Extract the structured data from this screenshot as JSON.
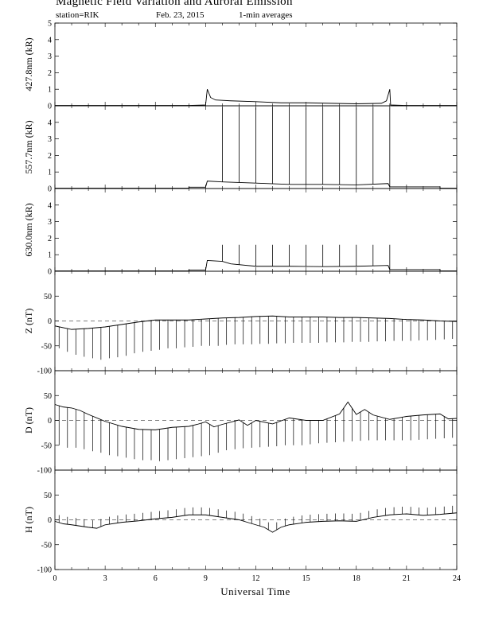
{
  "header": {
    "title": "Magnetic Field Variation and Auroral Emission",
    "station": "station=RIK",
    "date": "Feb. 23, 2015",
    "averaging": "1-min averages"
  },
  "chart_data": {
    "type": "line",
    "xlabel": "Universal Time",
    "x_ticks": [
      0,
      3,
      6,
      9,
      12,
      15,
      18,
      21,
      24
    ],
    "xlim": [
      0,
      24
    ],
    "panels": [
      {
        "id": "427",
        "ylabel": "427.8nm (kR)",
        "ylim": [
          0,
          5
        ],
        "yticks": [
          0,
          1,
          2,
          3,
          4,
          5
        ],
        "points": [
          [
            0,
            0.02
          ],
          [
            8.0,
            0.02
          ],
          [
            9.0,
            0.05
          ],
          [
            9.1,
            1.0
          ],
          [
            9.3,
            0.5
          ],
          [
            9.6,
            0.35
          ],
          [
            10.5,
            0.3
          ],
          [
            12,
            0.25
          ],
          [
            13.5,
            0.18
          ],
          [
            15,
            0.18
          ],
          [
            16.5,
            0.15
          ],
          [
            18,
            0.12
          ],
          [
            19.5,
            0.15
          ],
          [
            19.8,
            0.3
          ],
          [
            20.0,
            1.0
          ],
          [
            20.05,
            0.05
          ],
          [
            21,
            0.02
          ],
          [
            24,
            0.02
          ]
        ]
      },
      {
        "id": "557",
        "ylabel": "557.7nm (kR)",
        "ylim": [
          0,
          5
        ],
        "yticks": [
          0,
          1,
          2,
          3,
          4
        ],
        "points": [
          [
            0,
            0.02
          ],
          [
            8.0,
            0.02
          ],
          [
            8.0,
            0.08
          ],
          [
            9.0,
            0.08
          ],
          [
            9.1,
            0.45
          ],
          [
            10,
            0.4
          ],
          [
            12,
            0.33
          ],
          [
            14,
            0.25
          ],
          [
            16,
            0.25
          ],
          [
            18,
            0.22
          ],
          [
            19.9,
            0.3
          ],
          [
            20.0,
            0.1
          ],
          [
            23,
            0.1
          ],
          [
            23,
            0.02
          ],
          [
            24,
            0.02
          ]
        ],
        "spikes": [
          10,
          11,
          12,
          13,
          14,
          15,
          16,
          17,
          18,
          19,
          20
        ],
        "spike_height": 4.9
      },
      {
        "id": "630",
        "ylabel": "630.0nm (kR)",
        "ylim": [
          0,
          5
        ],
        "yticks": [
          0,
          1,
          2,
          3,
          4
        ],
        "points": [
          [
            0,
            0.02
          ],
          [
            8.0,
            0.02
          ],
          [
            8.0,
            0.07
          ],
          [
            9.0,
            0.07
          ],
          [
            9.1,
            0.65
          ],
          [
            10,
            0.6
          ],
          [
            10.5,
            0.45
          ],
          [
            12,
            0.3
          ],
          [
            14,
            0.3
          ],
          [
            16,
            0.28
          ],
          [
            18,
            0.3
          ],
          [
            19.9,
            0.35
          ],
          [
            20.0,
            0.1
          ],
          [
            23,
            0.1
          ],
          [
            23,
            0.02
          ],
          [
            24,
            0.02
          ]
        ],
        "spikes": [
          10,
          11,
          12,
          13,
          14,
          15,
          16,
          17,
          18,
          19,
          20
        ],
        "spike_height": 1.6
      },
      {
        "id": "Z",
        "ylabel": "Z (nT)",
        "ylim": [
          -100,
          100
        ],
        "yticks": [
          -100,
          -50,
          0,
          50
        ],
        "zero_line": true,
        "points": [
          [
            0,
            -10
          ],
          [
            1,
            -17
          ],
          [
            2,
            -15
          ],
          [
            3,
            -12
          ],
          [
            4,
            -7
          ],
          [
            5,
            -2
          ],
          [
            6,
            2
          ],
          [
            7,
            2
          ],
          [
            8,
            2
          ],
          [
            9,
            4
          ],
          [
            10,
            6
          ],
          [
            11,
            7
          ],
          [
            12,
            9
          ],
          [
            13,
            10
          ],
          [
            14,
            8
          ],
          [
            15,
            8
          ],
          [
            16,
            8
          ],
          [
            17,
            7
          ],
          [
            18,
            7
          ],
          [
            19,
            6
          ],
          [
            20,
            5
          ],
          [
            21,
            3
          ],
          [
            22,
            2
          ],
          [
            23,
            0
          ],
          [
            24,
            -1
          ]
        ],
        "spike_start": 0.25,
        "spike_step": 0.5,
        "spike_depth": [
          -55,
          -62,
          -68,
          -72,
          -75,
          -78,
          -75,
          -73,
          -70,
          -65,
          -62,
          -60,
          -58,
          -55,
          -55,
          -53,
          -52,
          -50,
          -50,
          -50,
          -48,
          -47,
          -47,
          -47,
          -46,
          -46,
          -45,
          -45,
          -44,
          -44,
          -44,
          -44,
          -43,
          -43,
          -43,
          -42,
          -42,
          -42,
          -41,
          -41,
          -40,
          -40,
          -40,
          -39,
          -39,
          -38,
          -37,
          -36
        ]
      },
      {
        "id": "D",
        "ylabel": "D (nT)",
        "ylim": [
          -100,
          100
        ],
        "yticks": [
          -100,
          -50,
          0,
          50
        ],
        "zero_line": true,
        "points": [
          [
            0,
            32
          ],
          [
            0.5,
            27
          ],
          [
            1,
            25
          ],
          [
            1.5,
            20
          ],
          [
            2,
            12
          ],
          [
            3,
            -2
          ],
          [
            4,
            -12
          ],
          [
            5,
            -18
          ],
          [
            6,
            -19
          ],
          [
            7,
            -14
          ],
          [
            8,
            -12
          ],
          [
            8.5,
            -8
          ],
          [
            9,
            -3
          ],
          [
            9.5,
            -13
          ],
          [
            10,
            -8
          ],
          [
            11,
            1
          ],
          [
            11.5,
            -10
          ],
          [
            12,
            0
          ],
          [
            13,
            -7
          ],
          [
            14,
            5
          ],
          [
            15,
            0
          ],
          [
            16,
            0
          ],
          [
            17,
            13
          ],
          [
            17.5,
            37
          ],
          [
            18,
            12
          ],
          [
            18.5,
            22
          ],
          [
            19,
            11
          ],
          [
            20,
            2
          ],
          [
            21,
            8
          ],
          [
            22,
            11
          ],
          [
            23,
            13
          ],
          [
            23.5,
            3
          ],
          [
            24,
            4
          ]
        ],
        "spike_start": 0.25,
        "spike_step": 0.5,
        "spike_depth": [
          -50,
          -55,
          -55,
          -58,
          -62,
          -65,
          -70,
          -72,
          -75,
          -78,
          -80,
          -80,
          -82,
          -80,
          -78,
          -76,
          -74,
          -72,
          -70,
          -65,
          -60,
          -58,
          -56,
          -55,
          -54,
          -53,
          -52,
          -50,
          -50,
          -50,
          -48,
          -46,
          -45,
          -44,
          -43,
          -42,
          -41,
          -40,
          -40,
          -40,
          -40,
          -40,
          -40,
          -39,
          -38,
          -37,
          -36,
          -35
        ]
      },
      {
        "id": "H",
        "ylabel": "H (nT)",
        "ylim": [
          -100,
          100
        ],
        "yticks": [
          -100,
          -50,
          0,
          50
        ],
        "zero_line": true,
        "points": [
          [
            0,
            -3
          ],
          [
            0.5,
            -8
          ],
          [
            1,
            -10
          ],
          [
            2,
            -15
          ],
          [
            2.5,
            -17
          ],
          [
            3,
            -10
          ],
          [
            4,
            -5
          ],
          [
            5,
            -2
          ],
          [
            6,
            2
          ],
          [
            7,
            5
          ],
          [
            8,
            10
          ],
          [
            9,
            10
          ],
          [
            10,
            5
          ],
          [
            11,
            0
          ],
          [
            11.5,
            -5
          ],
          [
            12,
            -10
          ],
          [
            12.5,
            -15
          ],
          [
            13,
            -25
          ],
          [
            13.5,
            -15
          ],
          [
            14,
            -10
          ],
          [
            15,
            -5
          ],
          [
            16,
            -3
          ],
          [
            17,
            -2
          ],
          [
            18,
            -3
          ],
          [
            19,
            5
          ],
          [
            20,
            10
          ],
          [
            21,
            12
          ],
          [
            22,
            9
          ],
          [
            23,
            11
          ],
          [
            24,
            14
          ]
        ],
        "spike_start": 0.25,
        "spike_step": 0.5,
        "spike_height": [
          15,
          15,
          15,
          15,
          15,
          15,
          15,
          15,
          15,
          15,
          15,
          15,
          15,
          15,
          15,
          15,
          15,
          15,
          15,
          15,
          15,
          15,
          15,
          15,
          15,
          15,
          15,
          15,
          15,
          15,
          15,
          15,
          15,
          15,
          15,
          15,
          15,
          15,
          15,
          15,
          15,
          15,
          15,
          15,
          15,
          15,
          15,
          15
        ]
      }
    ]
  }
}
